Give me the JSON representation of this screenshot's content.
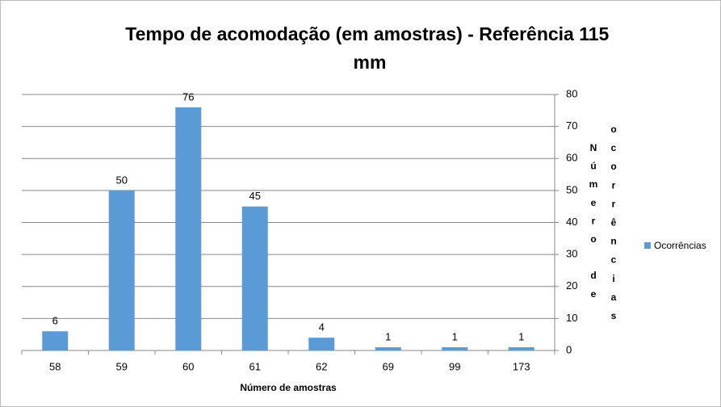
{
  "chart_data": {
    "type": "bar",
    "title": "Tempo de acomodação (em amostras) - Referência 115 mm",
    "x_label": "Número de amostras",
    "y_label": "Número de ocorrências",
    "categories": [
      "58",
      "59",
      "60",
      "61",
      "62",
      "69",
      "99",
      "173"
    ],
    "series": [
      {
        "name": "Ocorrências",
        "color": "#5b9bd5",
        "values": [
          6,
          50,
          76,
          45,
          4,
          1,
          1,
          1
        ]
      }
    ],
    "ylim": [
      0,
      80
    ],
    "yticks": [
      0,
      10,
      20,
      30,
      40,
      50,
      60,
      70,
      80
    ],
    "grid": true,
    "y_axis_side": "right",
    "legend": "right"
  }
}
